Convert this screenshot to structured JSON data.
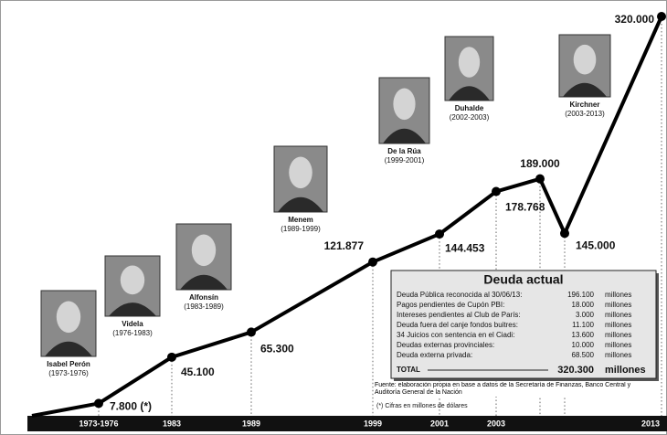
{
  "chart_data": {
    "type": "line",
    "categories": [
      "1973-1976",
      "1983",
      "1989",
      "1999",
      "2001",
      "2003",
      null,
      null,
      "2013"
    ],
    "values": [
      7800,
      45100,
      65300,
      121877,
      144453,
      178768,
      189000,
      145000,
      320000
    ],
    "value_labels": [
      "7.800 (*)",
      "45.100",
      "65.300",
      "121.877",
      "144.453",
      "178.768",
      "189.000",
      "145.000",
      "320.000"
    ],
    "color": "#000000",
    "ylim": [
      0,
      320000
    ],
    "grid": false,
    "presidents": [
      {
        "name": "Isabel Perón",
        "period": "(1973-1976)"
      },
      {
        "name": "Videla",
        "period": "(1976-1983)"
      },
      {
        "name": "Alfonsín",
        "period": "(1983-1989)"
      },
      {
        "name": "Menem",
        "period": "(1989-1999)"
      },
      {
        "name": "De la Rúa",
        "period": "(1999-2001)"
      },
      {
        "name": "Duhalde",
        "period": "(2002-2003)"
      },
      {
        "name": "Kirchner",
        "period": "(2003-2013)"
      }
    ],
    "deuda_actual": {
      "title": "Deuda actual",
      "rows": [
        {
          "label": "Deuda Pública reconocida al 30/06/13:",
          "amount": "196.100",
          "unit": "millones"
        },
        {
          "label": "Pagos pendientes de Cupón PBI:",
          "amount": "18.000",
          "unit": "millones"
        },
        {
          "label": "Intereses pendientes al Club de París:",
          "amount": "3.000",
          "unit": "millones"
        },
        {
          "label": "Deuda fuera del canje fondos buitres:",
          "amount": "11.100",
          "unit": "millones"
        },
        {
          "label": "34 Juicios con sentencia en el Ciadi:",
          "amount": "13.600",
          "unit": "millones"
        },
        {
          "label": "Deudas externas provinciales:",
          "amount": "10.000",
          "unit": "millones"
        },
        {
          "label": "Deuda externa privada:",
          "amount": "68.500",
          "unit": "millones"
        }
      ],
      "total": {
        "label": "TOTAL",
        "amount": "320.300",
        "unit": "millones"
      }
    },
    "source": "Fuente: elaboración propia en base a datos de la Secretaría de Finanzas, Banco Central y Auditoría General de la Nación",
    "note": "(*) Cifras en millones de dólares"
  }
}
